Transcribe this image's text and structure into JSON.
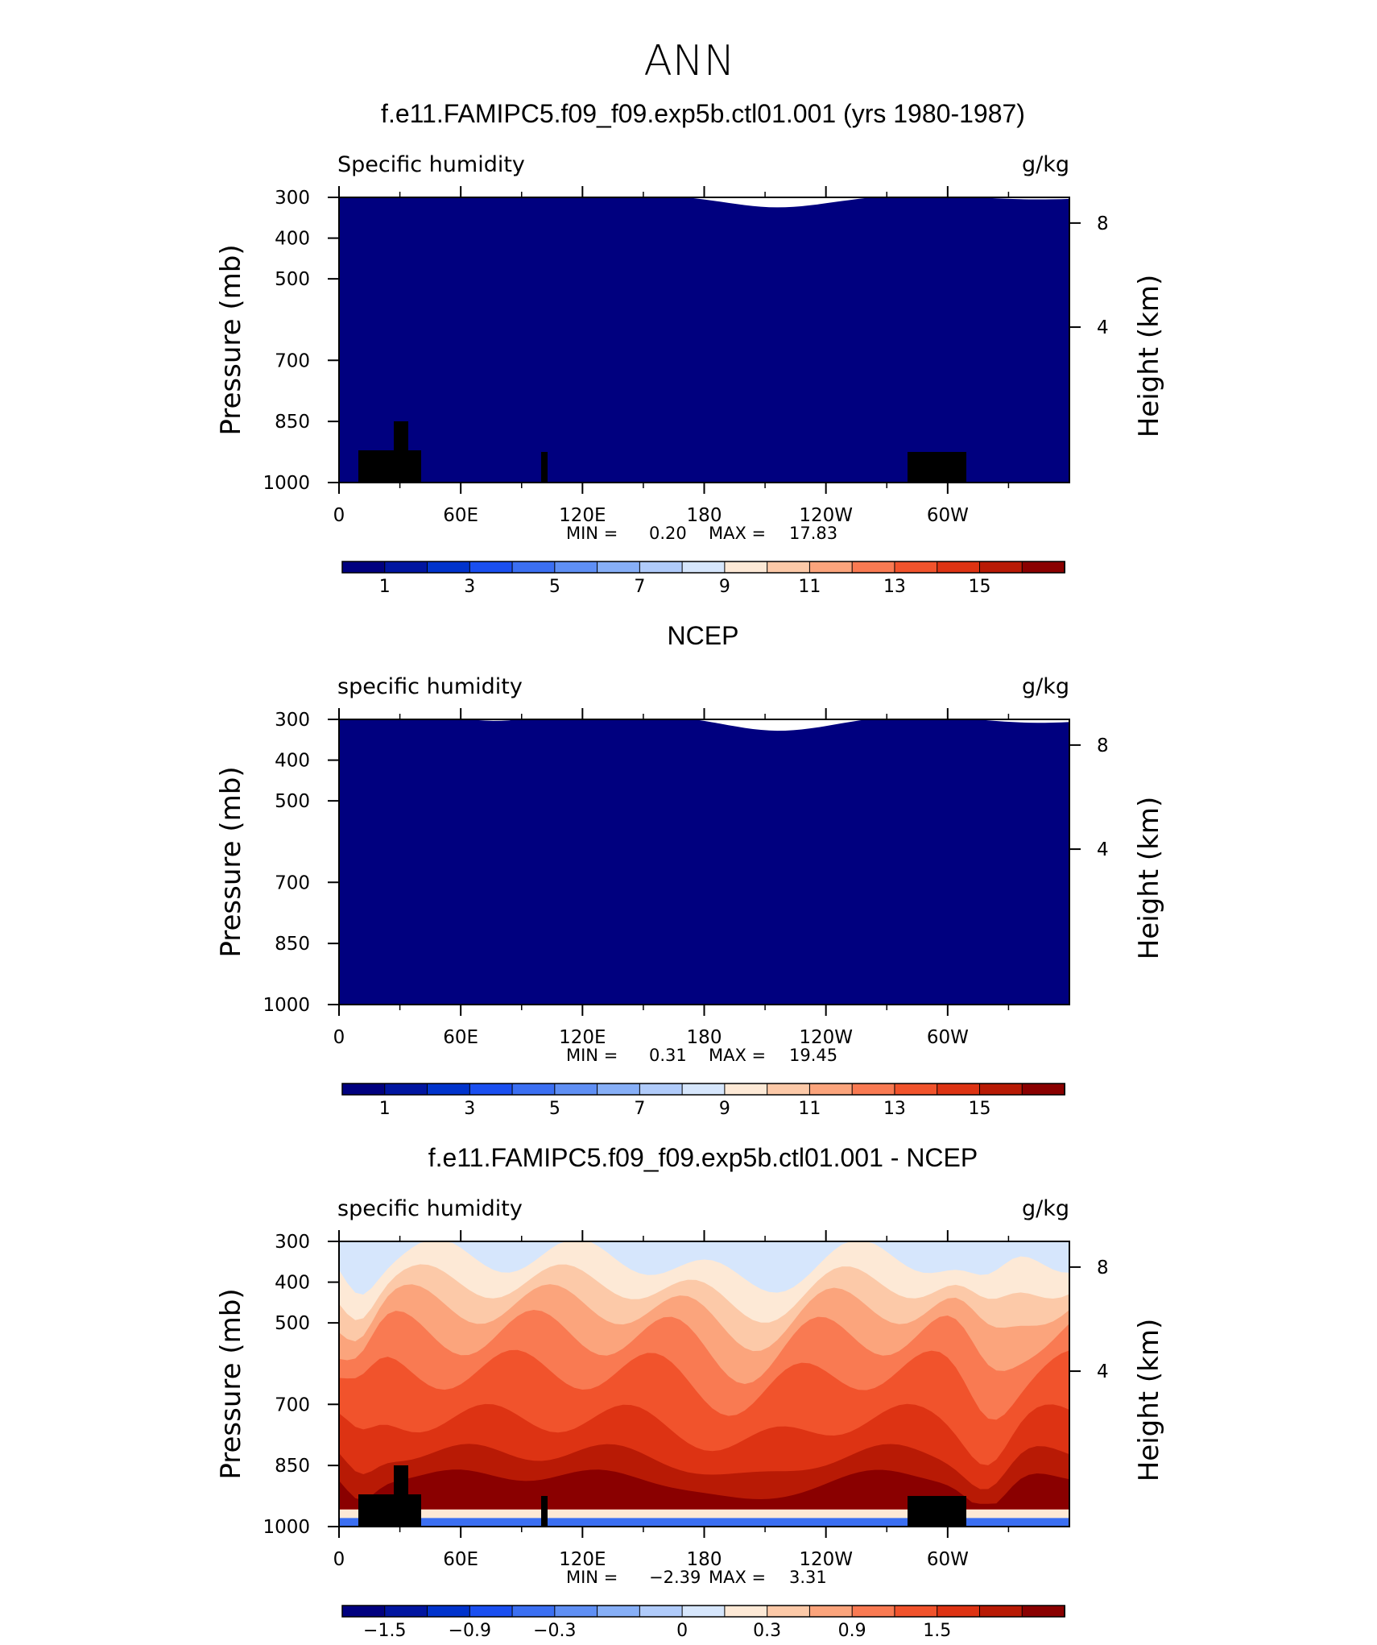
{
  "page_title": "ANN",
  "chart_data": [
    {
      "type": "heatmap",
      "title": "f.e11.FAMIPC5.f09_f09.exp5b.ctl01.001 (yrs 1980-1987)",
      "left_label": "Specific humidity",
      "right_label": "g/kg",
      "ylabel": "Pressure (mb)",
      "ylabel_right": "Height (km)",
      "x_ticks": [
        "0",
        "60E",
        "120E",
        "180",
        "120W",
        "60W"
      ],
      "y_ticks": [
        "300",
        "400",
        "500",
        "700",
        "850",
        "1000"
      ],
      "y_right_ticks": [
        "8",
        "4"
      ],
      "min_label": "MIN =",
      "min_value": "0.20",
      "max_label": "MAX =",
      "max_value": "17.83",
      "colorbar_labels": [
        "1",
        "3",
        "5",
        "7",
        "9",
        "11",
        "13",
        "15"
      ]
    },
    {
      "type": "heatmap",
      "title": "NCEP",
      "left_label": "specific humidity",
      "right_label": "g/kg",
      "ylabel": "Pressure (mb)",
      "ylabel_right": "Height (km)",
      "x_ticks": [
        "0",
        "60E",
        "120E",
        "180",
        "120W",
        "60W"
      ],
      "y_ticks": [
        "300",
        "400",
        "500",
        "700",
        "850",
        "1000"
      ],
      "y_right_ticks": [
        "8",
        "4"
      ],
      "min_label": "MIN =",
      "min_value": "0.31",
      "max_label": "MAX =",
      "max_value": "19.45",
      "colorbar_labels": [
        "1",
        "3",
        "5",
        "7",
        "9",
        "11",
        "13",
        "15"
      ]
    },
    {
      "type": "heatmap",
      "title": "f.e11.FAMIPC5.f09_f09.exp5b.ctl01.001 - NCEP",
      "left_label": "specific humidity",
      "right_label": "g/kg",
      "ylabel": "Pressure (mb)",
      "ylabel_right": "Height (km)",
      "x_ticks": [
        "0",
        "60E",
        "120E",
        "180",
        "120W",
        "60W"
      ],
      "y_ticks": [
        "300",
        "400",
        "500",
        "700",
        "850",
        "1000"
      ],
      "y_right_ticks": [
        "8",
        "4"
      ],
      "min_label": "MIN =",
      "min_value": "−2.39",
      "max_label": "MAX =",
      "max_value": "3.31",
      "colorbar_labels": [
        "−1.5",
        "−0.9",
        "−0.3",
        "0",
        "0.3",
        "0.9",
        "1.5"
      ]
    }
  ],
  "colors": [
    "#00007f",
    "#0015a0",
    "#0033cc",
    "#1a4ff0",
    "#3b6ff2",
    "#5f8ff4",
    "#87aff7",
    "#b0cbfa",
    "#d6e6fc",
    "#fde9d6",
    "#fcc9a8",
    "#fba47c",
    "#f97a52",
    "#f1532c",
    "#dd3313",
    "#b81a05",
    "#8a0000"
  ],
  "colors_diff": [
    "#00007f",
    "#0015a0",
    "#0033cc",
    "#1a4ff0",
    "#3b6ff2",
    "#5f8ff4",
    "#87aff7",
    "#b0cbfa",
    "#d6e6fc",
    "#fde9d6",
    "#fcc9a8",
    "#fba47c",
    "#f97a52",
    "#f1532c",
    "#dd3313",
    "#b81a05",
    "#8a0000"
  ]
}
